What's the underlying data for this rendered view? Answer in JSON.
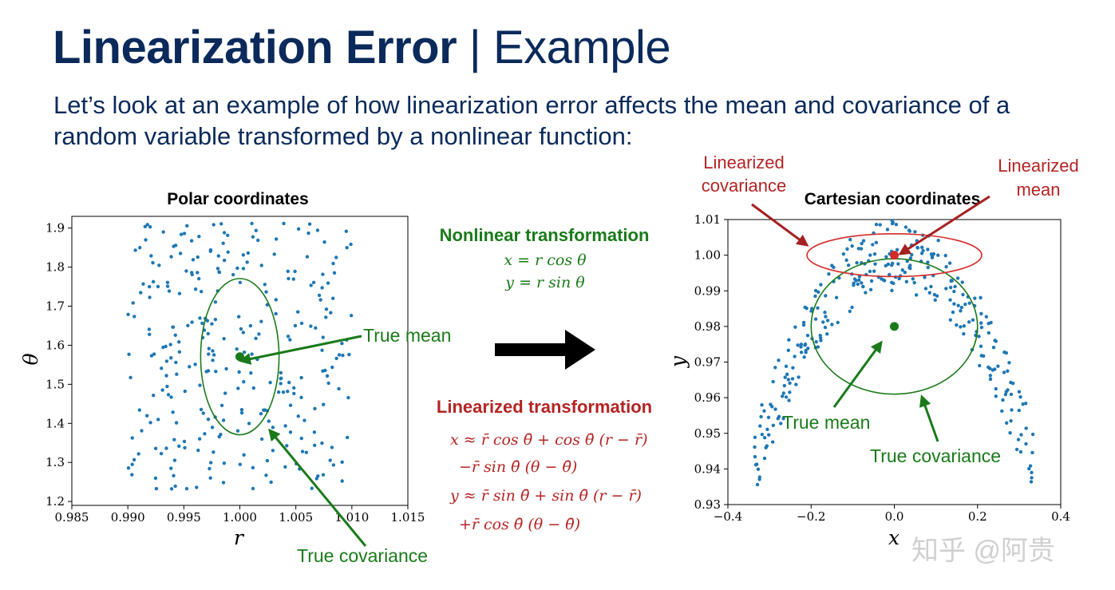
{
  "slide": {
    "title_bold": "Linearization Error",
    "title_rest": " | Example",
    "intro": "Let’s look at an example of how linearization error affects the mean and covariance of a random variable transformed by a nonlinear function:",
    "watermark": "知乎 @阿贵"
  },
  "middle": {
    "nonlinear_heading": "Nonlinear transformation",
    "nonlinear_eqs": [
      "x = r cos θ",
      "y = r sin θ"
    ],
    "linearized_heading": "Linearized transformation",
    "linearized_eqs": [
      "x ≈ r̄ cos θ̄ + cos θ̄ (r − r̄)",
      "−r̄ sin θ̄ (θ − θ̄)",
      "y ≈ r̄ sin θ̄ + sin θ̄ (r − r̄)",
      "+r̄ cos θ̄ (θ − θ̄)"
    ],
    "arrow_color": "#000000"
  },
  "chart_data": [
    {
      "type": "scatter",
      "title": "Polar coordinates",
      "xlabel": "r",
      "ylabel": "θ",
      "xlim": [
        0.985,
        1.015
      ],
      "ylim": [
        1.19,
        1.93
      ],
      "xticks": [
        "0.985",
        "0.990",
        "0.995",
        "1.000",
        "1.005",
        "1.010",
        "1.015"
      ],
      "yticks": [
        "1.2",
        "1.3",
        "1.4",
        "1.5",
        "1.6",
        "1.7",
        "1.8",
        "1.9"
      ],
      "sample_distribution": {
        "r_range": [
          0.99,
          1.01
        ],
        "theta_range": [
          1.23,
          1.92
        ],
        "count": 300
      },
      "true_mean": {
        "r": 1.0,
        "theta": 1.5708
      },
      "true_covariance_ellipse": {
        "center": [
          1.0,
          1.5708
        ],
        "half_width_r": 0.0035,
        "half_height_theta": 0.2
      },
      "annotations": [
        "True mean",
        "True covariance"
      ],
      "colors": {
        "points": "#1f77b4",
        "truth": "#1a7a1a"
      }
    },
    {
      "type": "scatter",
      "title": "Cartesian coordinates",
      "xlabel": "x",
      "ylabel": "y",
      "xlim": [
        -0.4,
        0.4
      ],
      "ylim": [
        0.93,
        1.01
      ],
      "xticks": [
        "−0.4",
        "−0.2",
        "0.0",
        "0.2",
        "0.4"
      ],
      "yticks": [
        "0.93",
        "0.94",
        "0.95",
        "0.96",
        "0.97",
        "0.98",
        "0.99",
        "1.00",
        "1.01"
      ],
      "true_mean": {
        "x": 0.0,
        "y": 0.98
      },
      "true_covariance_ellipse": {
        "center": [
          0.0,
          0.98
        ],
        "half_width_x": 0.2,
        "half_height_y": 0.019
      },
      "linearized_mean": {
        "x": 0.0,
        "y": 1.0
      },
      "linearized_covariance_ellipse": {
        "center": [
          0.0,
          1.0
        ],
        "half_width_x": 0.21,
        "half_height_y": 0.006
      },
      "annotations": [
        "Linearized covariance",
        "Linearized mean",
        "True mean",
        "True covariance"
      ],
      "colors": {
        "points": "#1f77b4",
        "truth": "#1a7a1a",
        "linearized": "#d42a2a"
      }
    }
  ]
}
